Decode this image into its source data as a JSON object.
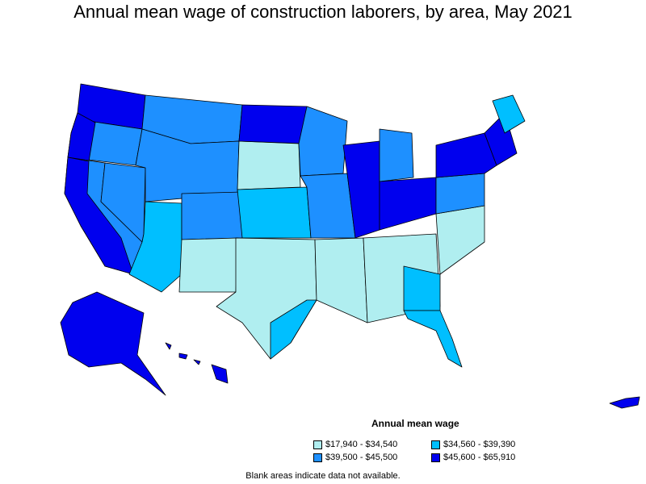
{
  "title": "Annual mean wage of construction laborers, by area, May 2021",
  "legend": {
    "title": "Annual mean wage",
    "items": [
      {
        "label": "$17,940 - $34,540",
        "color": "#b0eef0"
      },
      {
        "label": "$34,560 - $39,390",
        "color": "#00bfff"
      },
      {
        "label": "$39,500 - $45,500",
        "color": "#1e90ff"
      },
      {
        "label": "$45,600 - $65,910",
        "color": "#0000ee"
      }
    ]
  },
  "footnote": "Blank areas indicate data not available."
}
